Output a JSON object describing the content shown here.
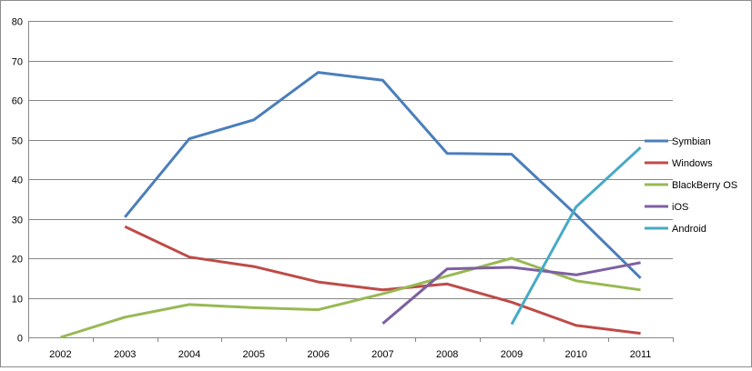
{
  "chart_data": {
    "type": "line",
    "title": "",
    "xlabel": "",
    "ylabel": "",
    "categories": [
      "2002",
      "2003",
      "2004",
      "2005",
      "2006",
      "2007",
      "2008",
      "2009",
      "2010",
      "2011"
    ],
    "ylim": [
      0,
      80
    ],
    "yticks": [
      "0",
      "10",
      "20",
      "30",
      "40",
      "50",
      "60",
      "70",
      "80"
    ],
    "grid": "horizontal",
    "legend_position": "right",
    "series": [
      {
        "name": "Symbian",
        "color": "#4a7ebb",
        "values": [
          null,
          30.4,
          50.2,
          55.0,
          67.0,
          65.0,
          46.5,
          46.3,
          31.0,
          15.0
        ]
      },
      {
        "name": "Windows",
        "color": "#be4b48",
        "values": [
          null,
          28.0,
          20.3,
          17.9,
          14.0,
          12.0,
          13.5,
          8.9,
          3.0,
          1.0
        ]
      },
      {
        "name": "BlackBerry OS",
        "color": "#98b954",
        "values": [
          0.0,
          5.1,
          8.3,
          7.5,
          7.0,
          11.0,
          15.5,
          20.0,
          14.3,
          12.0
        ]
      },
      {
        "name": "iOS",
        "color": "#7d60a0",
        "values": [
          null,
          null,
          null,
          null,
          null,
          3.5,
          17.3,
          17.7,
          15.8,
          18.9
        ]
      },
      {
        "name": "Android",
        "color": "#46aac5",
        "values": [
          null,
          null,
          null,
          null,
          null,
          null,
          null,
          3.3,
          33.0,
          48.0
        ]
      }
    ]
  }
}
